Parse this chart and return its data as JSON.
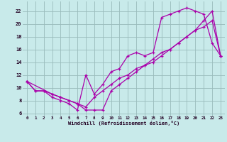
{
  "xlabel": "Windchill (Refroidissement éolien,°C)",
  "bg_color": "#c8eaea",
  "grid_color": "#99bbbb",
  "line_color": "#aa00aa",
  "xlim": [
    -0.5,
    23.5
  ],
  "ylim": [
    5.5,
    23.5
  ],
  "xticks": [
    0,
    1,
    2,
    3,
    4,
    5,
    6,
    7,
    8,
    9,
    10,
    11,
    12,
    13,
    14,
    15,
    16,
    17,
    18,
    19,
    20,
    21,
    22,
    23
  ],
  "yticks": [
    6,
    8,
    10,
    12,
    14,
    16,
    18,
    20,
    22
  ],
  "line1_x": [
    0,
    1,
    2,
    3,
    4,
    5,
    6,
    7,
    8,
    9,
    10,
    11,
    12,
    13,
    14,
    15,
    16,
    17,
    18,
    19,
    20,
    21,
    22,
    23
  ],
  "line1_y": [
    11,
    9.5,
    9.5,
    8.5,
    8.0,
    7.5,
    6.5,
    12,
    9,
    10.5,
    12.5,
    13,
    15,
    15.5,
    15,
    15.5,
    21,
    21.5,
    22,
    22.5,
    22,
    21.5,
    17,
    15
  ],
  "line2_x": [
    0,
    1,
    2,
    3,
    4,
    5,
    6,
    7,
    8,
    9,
    10,
    11,
    12,
    13,
    14,
    15,
    16,
    17,
    18,
    19,
    20,
    21,
    22,
    23
  ],
  "line2_y": [
    11,
    9.5,
    9.5,
    9.0,
    8.5,
    8.0,
    7.5,
    7.0,
    8.5,
    9.5,
    10.5,
    11.5,
    12,
    13,
    13.5,
    14,
    15,
    16,
    17,
    18,
    19,
    19.5,
    20.5,
    15
  ],
  "line3_x": [
    0,
    3,
    4,
    5,
    6,
    7,
    8,
    9,
    10,
    11,
    12,
    13,
    14,
    15,
    16,
    17,
    18,
    19,
    20,
    21,
    22,
    23
  ],
  "line3_y": [
    11,
    9.0,
    8.5,
    8.0,
    7.5,
    6.5,
    6.5,
    6.5,
    9.5,
    10.5,
    11.5,
    12.5,
    13.5,
    14.5,
    15.5,
    16,
    17,
    18,
    19,
    20.5,
    22,
    15
  ]
}
